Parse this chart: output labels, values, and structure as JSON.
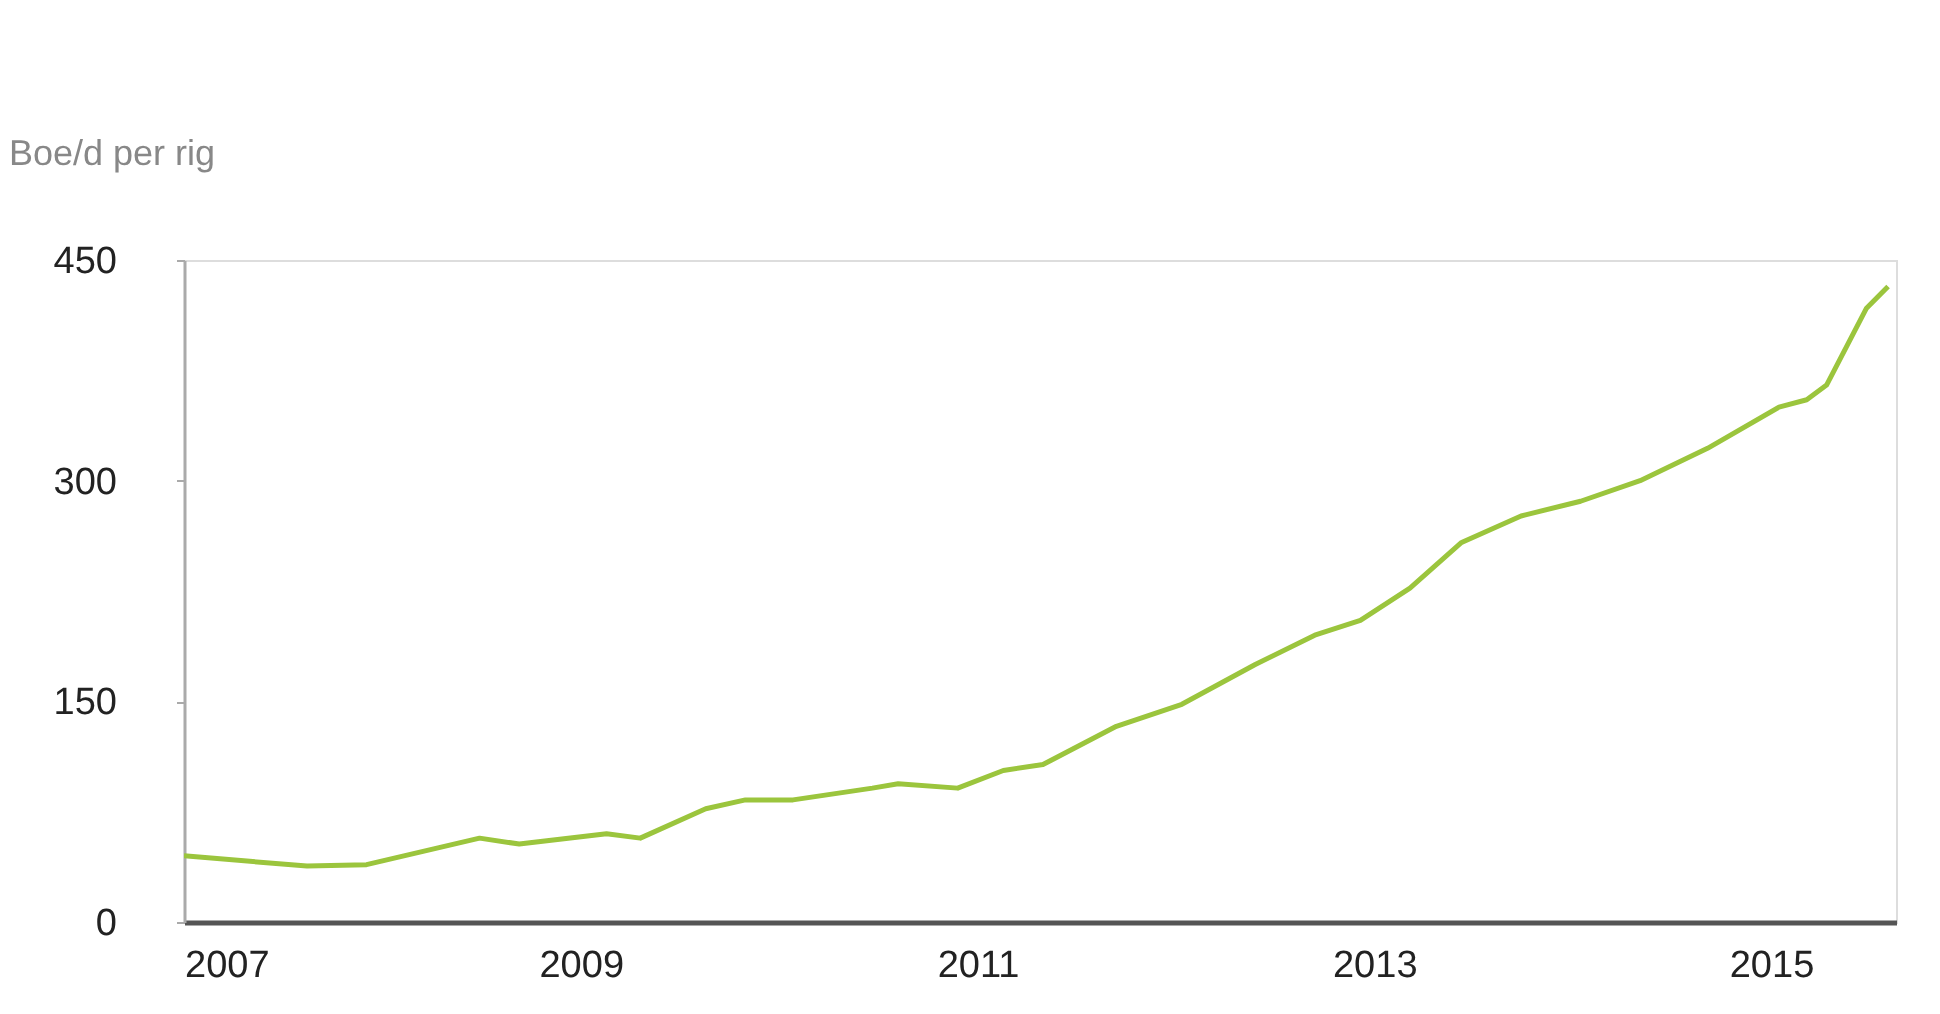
{
  "chart_data": {
    "type": "line",
    "ylabel": "Boe/d per rig",
    "x": [
      2007.0,
      2007.62,
      2007.92,
      2008.49,
      2008.69,
      2009.13,
      2009.3,
      2009.63,
      2009.83,
      2010.07,
      2010.47,
      2010.6,
      2010.9,
      2011.13,
      2011.33,
      2011.7,
      2012.03,
      2012.4,
      2012.7,
      2012.93,
      2013.18,
      2013.44,
      2013.74,
      2014.04,
      2014.34,
      2014.68,
      2015.04,
      2015.18,
      2015.28,
      2015.48,
      2015.59
    ],
    "series": [
      {
        "color": "#9bc53d",
        "values": [
          45,
          38,
          39,
          57,
          53,
          60,
          57,
          77,
          83,
          83,
          91,
          94,
          91,
          103,
          107,
          133,
          148,
          175,
          195,
          205,
          227,
          258,
          276,
          286,
          300,
          322,
          350,
          355,
          365,
          417,
          432
        ]
      }
    ],
    "xlim": [
      2007,
      2015.63
    ],
    "xticks": [
      2007,
      2009,
      2011,
      2013,
      2015
    ],
    "ylim": [
      0,
      450
    ],
    "yticks": [
      0,
      150,
      300,
      450
    ],
    "grid": false,
    "legend": false,
    "marker": "none",
    "line_style": "solid"
  }
}
